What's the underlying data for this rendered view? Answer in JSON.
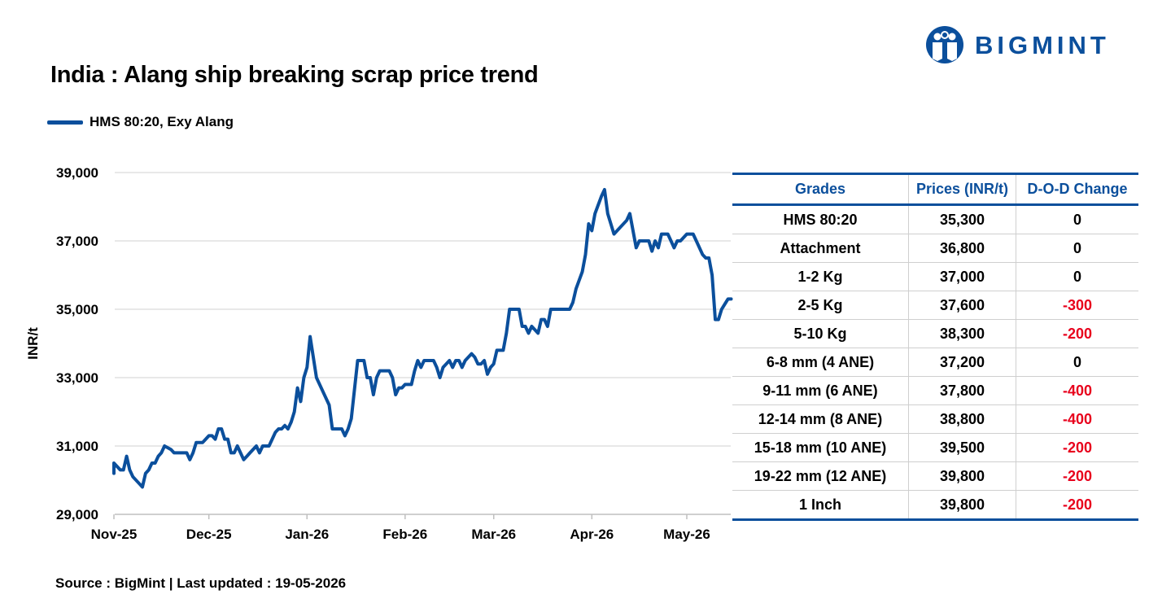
{
  "title": "India : Alang ship breaking scrap price trend",
  "brand": {
    "name": "BIGMINT",
    "color": "#0b4f9c"
  },
  "source": "Source : BigMint | Last updated : 19-05-2026",
  "chart_data": {
    "type": "line",
    "title": "India : Alang ship breaking scrap price trend",
    "ylabel": "INR/t",
    "xlabel": "",
    "ylim": [
      29000,
      39000
    ],
    "y_ticks": [
      "29,000",
      "31,000",
      "33,000",
      "35,000",
      "37,000",
      "39,000"
    ],
    "x_ticks": [
      "Nov-25",
      "Dec-25",
      "Jan-26",
      "Feb-26",
      "Mar-26",
      "Apr-26",
      "May-26"
    ],
    "x_tick_dates": [
      "2025-11-01",
      "2025-12-01",
      "2026-01-01",
      "2026-02-01",
      "2026-03-01",
      "2026-04-01",
      "2026-05-01"
    ],
    "grid": "horizontal",
    "legend_position": "top-left",
    "series": [
      {
        "name": "HMS 80:20, Exy Alang",
        "color": "#0b4f9c",
        "points": [
          [
            "2025-11-01",
            30200
          ],
          [
            "2025-11-01",
            30500
          ],
          [
            "2025-11-03",
            30300
          ],
          [
            "2025-11-04",
            30300
          ],
          [
            "2025-11-05",
            30700
          ],
          [
            "2025-11-06",
            30300
          ],
          [
            "2025-11-07",
            30100
          ],
          [
            "2025-11-09",
            29900
          ],
          [
            "2025-11-10",
            29800
          ],
          [
            "2025-11-11",
            30200
          ],
          [
            "2025-11-12",
            30300
          ],
          [
            "2025-11-13",
            30500
          ],
          [
            "2025-11-14",
            30500
          ],
          [
            "2025-11-15",
            30700
          ],
          [
            "2025-11-16",
            30800
          ],
          [
            "2025-11-17",
            31000
          ],
          [
            "2025-11-19",
            30900
          ],
          [
            "2025-11-20",
            30800
          ],
          [
            "2025-11-24",
            30800
          ],
          [
            "2025-11-25",
            30600
          ],
          [
            "2025-11-26",
            30800
          ],
          [
            "2025-11-27",
            31100
          ],
          [
            "2025-11-29",
            31100
          ],
          [
            "2025-11-30",
            31200
          ],
          [
            "2025-12-01",
            31300
          ],
          [
            "2025-12-02",
            31300
          ],
          [
            "2025-12-03",
            31200
          ],
          [
            "2025-12-04",
            31500
          ],
          [
            "2025-12-05",
            31500
          ],
          [
            "2025-12-06",
            31200
          ],
          [
            "2025-12-07",
            31200
          ],
          [
            "2025-12-08",
            30800
          ],
          [
            "2025-12-09",
            30800
          ],
          [
            "2025-12-10",
            31000
          ],
          [
            "2025-12-12",
            30600
          ],
          [
            "2025-12-13",
            30700
          ],
          [
            "2025-12-14",
            30800
          ],
          [
            "2025-12-16",
            31000
          ],
          [
            "2025-12-17",
            30800
          ],
          [
            "2025-12-18",
            31000
          ],
          [
            "2025-12-19",
            31000
          ],
          [
            "2025-12-20",
            31000
          ],
          [
            "2025-12-21",
            31200
          ],
          [
            "2025-12-22",
            31400
          ],
          [
            "2025-12-23",
            31500
          ],
          [
            "2025-12-24",
            31500
          ],
          [
            "2025-12-25",
            31600
          ],
          [
            "2025-12-26",
            31500
          ],
          [
            "2025-12-27",
            31700
          ],
          [
            "2025-12-28",
            32000
          ],
          [
            "2025-12-29",
            32700
          ],
          [
            "2025-12-30",
            32300
          ],
          [
            "2025-12-31",
            33000
          ],
          [
            "2026-01-01",
            33300
          ],
          [
            "2026-01-02",
            34200
          ],
          [
            "2026-01-03",
            33600
          ],
          [
            "2026-01-04",
            33000
          ],
          [
            "2026-01-06",
            32600
          ],
          [
            "2026-01-08",
            32200
          ],
          [
            "2026-01-09",
            31500
          ],
          [
            "2026-01-10",
            31500
          ],
          [
            "2026-01-12",
            31500
          ],
          [
            "2026-01-13",
            31300
          ],
          [
            "2026-01-14",
            31500
          ],
          [
            "2026-01-15",
            31800
          ],
          [
            "2026-01-17",
            33500
          ],
          [
            "2026-01-19",
            33500
          ],
          [
            "2026-01-20",
            33000
          ],
          [
            "2026-01-21",
            33000
          ],
          [
            "2026-01-22",
            32500
          ],
          [
            "2026-01-23",
            33000
          ],
          [
            "2026-01-24",
            33200
          ],
          [
            "2026-01-27",
            33200
          ],
          [
            "2026-01-28",
            33000
          ],
          [
            "2026-01-29",
            32500
          ],
          [
            "2026-01-30",
            32700
          ],
          [
            "2026-01-31",
            32700
          ],
          [
            "2026-02-01",
            32800
          ],
          [
            "2026-02-03",
            32800
          ],
          [
            "2026-02-04",
            33200
          ],
          [
            "2026-02-05",
            33500
          ],
          [
            "2026-02-06",
            33300
          ],
          [
            "2026-02-07",
            33500
          ],
          [
            "2026-02-10",
            33500
          ],
          [
            "2026-02-11",
            33300
          ],
          [
            "2026-02-12",
            33000
          ],
          [
            "2026-02-13",
            33300
          ],
          [
            "2026-02-14",
            33400
          ],
          [
            "2026-02-15",
            33500
          ],
          [
            "2026-02-16",
            33300
          ],
          [
            "2026-02-17",
            33500
          ],
          [
            "2026-02-18",
            33500
          ],
          [
            "2026-02-19",
            33300
          ],
          [
            "2026-02-20",
            33500
          ],
          [
            "2026-02-21",
            33600
          ],
          [
            "2026-02-22",
            33700
          ],
          [
            "2026-02-23",
            33600
          ],
          [
            "2026-02-24",
            33400
          ],
          [
            "2026-02-25",
            33400
          ],
          [
            "2026-02-26",
            33500
          ],
          [
            "2026-02-27",
            33100
          ],
          [
            "2026-02-28",
            33300
          ],
          [
            "2026-03-01",
            33400
          ],
          [
            "2026-03-02",
            33800
          ],
          [
            "2026-03-04",
            33800
          ],
          [
            "2026-03-05",
            34300
          ],
          [
            "2026-03-06",
            35000
          ],
          [
            "2026-03-09",
            35000
          ],
          [
            "2026-03-10",
            34500
          ],
          [
            "2026-03-11",
            34500
          ],
          [
            "2026-03-12",
            34300
          ],
          [
            "2026-03-13",
            34500
          ],
          [
            "2026-03-15",
            34300
          ],
          [
            "2026-03-16",
            34700
          ],
          [
            "2026-03-17",
            34700
          ],
          [
            "2026-03-18",
            34500
          ],
          [
            "2026-03-19",
            35000
          ],
          [
            "2026-03-25",
            35000
          ],
          [
            "2026-03-26",
            35200
          ],
          [
            "2026-03-27",
            35600
          ],
          [
            "2026-03-29",
            36100
          ],
          [
            "2026-03-30",
            36600
          ],
          [
            "2026-03-31",
            37500
          ],
          [
            "2026-04-01",
            37300
          ],
          [
            "2026-04-02",
            37800
          ],
          [
            "2026-04-04",
            38300
          ],
          [
            "2026-04-05",
            38500
          ],
          [
            "2026-04-06",
            37800
          ],
          [
            "2026-04-08",
            37200
          ],
          [
            "2026-04-10",
            37400
          ],
          [
            "2026-04-12",
            37600
          ],
          [
            "2026-04-13",
            37800
          ],
          [
            "2026-04-14",
            37300
          ],
          [
            "2026-04-15",
            36800
          ],
          [
            "2026-04-16",
            37000
          ],
          [
            "2026-04-19",
            37000
          ],
          [
            "2026-04-20",
            36700
          ],
          [
            "2026-04-21",
            37000
          ],
          [
            "2026-04-22",
            36800
          ],
          [
            "2026-04-23",
            37200
          ],
          [
            "2026-04-25",
            37200
          ],
          [
            "2026-04-26",
            37000
          ],
          [
            "2026-04-27",
            36800
          ],
          [
            "2026-04-28",
            37000
          ],
          [
            "2026-04-29",
            37000
          ],
          [
            "2026-05-01",
            37200
          ],
          [
            "2026-05-03",
            37200
          ],
          [
            "2026-05-04",
            37000
          ],
          [
            "2026-05-06",
            36600
          ],
          [
            "2026-05-07",
            36500
          ],
          [
            "2026-05-08",
            36500
          ],
          [
            "2026-05-09",
            36000
          ],
          [
            "2026-05-10",
            34700
          ],
          [
            "2026-05-11",
            34700
          ],
          [
            "2026-05-12",
            35000
          ],
          [
            "2026-05-14",
            35300
          ],
          [
            "2026-05-15",
            35300
          ]
        ]
      }
    ]
  },
  "table": {
    "headers": [
      "Grades",
      "Prices (INR/t)",
      "D-O-D Change"
    ],
    "rows": [
      {
        "grade": "HMS 80:20",
        "price": "35,300",
        "change": "0",
        "negative": false
      },
      {
        "grade": "Attachment",
        "price": "36,800",
        "change": "0",
        "negative": false
      },
      {
        "grade": "1-2 Kg",
        "price": "37,000",
        "change": "0",
        "negative": false
      },
      {
        "grade": "2-5 Kg",
        "price": "37,600",
        "change": "-300",
        "negative": true
      },
      {
        "grade": "5-10 Kg",
        "price": "38,300",
        "change": "-200",
        "negative": true
      },
      {
        "grade": "6-8 mm (4 ANE)",
        "price": "37,200",
        "change": "0",
        "negative": false
      },
      {
        "grade": "9-11 mm (6 ANE)",
        "price": "37,800",
        "change": "-400",
        "negative": true
      },
      {
        "grade": "12-14 mm (8 ANE)",
        "price": "38,800",
        "change": "-400",
        "negative": true
      },
      {
        "grade": "15-18 mm (10 ANE)",
        "price": "39,500",
        "change": "-200",
        "negative": true
      },
      {
        "grade": "19-22 mm (12 ANE)",
        "price": "39,800",
        "change": "-200",
        "negative": true
      },
      {
        "grade": "1 Inch",
        "price": "39,800",
        "change": "-200",
        "negative": true
      }
    ]
  }
}
